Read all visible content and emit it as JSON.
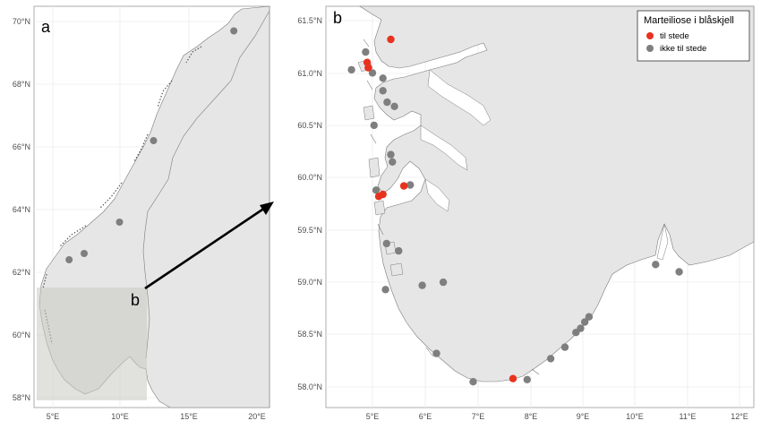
{
  "panel_a": {
    "label": "a",
    "inset_label": "b",
    "y_ticks": [
      "70°N",
      "68°N",
      "66°N",
      "64°N",
      "62°N",
      "60°N",
      "58°N"
    ],
    "x_ticks": [
      "5°E",
      "10°E",
      "15°E",
      "20°E"
    ],
    "sites": [
      {
        "lon": 18.3,
        "lat": 69.7
      },
      {
        "lon": 12.4,
        "lat": 66.2
      },
      {
        "lon": 9.9,
        "lat": 63.6
      },
      {
        "lon": 6.2,
        "lat": 62.4
      },
      {
        "lon": 7.3,
        "lat": 62.6
      }
    ]
  },
  "panel_b": {
    "label": "b",
    "y_ticks": [
      "61.5°N",
      "61.0°N",
      "60.5°N",
      "60.0°N",
      "59.5°N",
      "59.0°N",
      "58.5°N",
      "58.0°N"
    ],
    "x_ticks": [
      "5°E",
      "6°E",
      "7°E",
      "8°E",
      "9°E",
      "10°E",
      "11°E",
      "12°E"
    ],
    "legend": {
      "title": "Marteiliose i blåskjell",
      "present_label": "til stede",
      "absent_label": "ikke til stede",
      "present_color": "#e8321e",
      "absent_color": "#7f7f7f"
    },
    "sites_present": [
      {
        "lon": 5.35,
        "lat": 61.32
      },
      {
        "lon": 4.9,
        "lat": 61.1
      },
      {
        "lon": 4.92,
        "lat": 61.05
      },
      {
        "lon": 5.6,
        "lat": 59.92
      },
      {
        "lon": 5.2,
        "lat": 59.84
      },
      {
        "lon": 5.12,
        "lat": 59.82
      },
      {
        "lon": 7.68,
        "lat": 58.08
      }
    ],
    "sites_absent": [
      {
        "lon": 4.87,
        "lat": 61.2
      },
      {
        "lon": 4.6,
        "lat": 61.03
      },
      {
        "lon": 5.0,
        "lat": 61.0
      },
      {
        "lon": 5.2,
        "lat": 60.95
      },
      {
        "lon": 5.2,
        "lat": 60.83
      },
      {
        "lon": 5.28,
        "lat": 60.72
      },
      {
        "lon": 5.42,
        "lat": 60.68
      },
      {
        "lon": 5.03,
        "lat": 60.5
      },
      {
        "lon": 5.35,
        "lat": 60.22
      },
      {
        "lon": 5.38,
        "lat": 60.15
      },
      {
        "lon": 5.72,
        "lat": 59.93
      },
      {
        "lon": 5.07,
        "lat": 59.88
      },
      {
        "lon": 5.27,
        "lat": 59.37
      },
      {
        "lon": 5.5,
        "lat": 59.3
      },
      {
        "lon": 5.25,
        "lat": 58.93
      },
      {
        "lon": 5.95,
        "lat": 58.97
      },
      {
        "lon": 6.35,
        "lat": 59.0
      },
      {
        "lon": 6.22,
        "lat": 58.32
      },
      {
        "lon": 6.92,
        "lat": 58.05
      },
      {
        "lon": 7.95,
        "lat": 58.07
      },
      {
        "lon": 8.4,
        "lat": 58.27
      },
      {
        "lon": 8.67,
        "lat": 58.38
      },
      {
        "lon": 8.88,
        "lat": 58.52
      },
      {
        "lon": 8.97,
        "lat": 58.56
      },
      {
        "lon": 9.05,
        "lat": 58.62
      },
      {
        "lon": 9.13,
        "lat": 58.67
      },
      {
        "lon": 10.4,
        "lat": 59.17
      },
      {
        "lon": 10.85,
        "lat": 59.1
      }
    ]
  }
}
